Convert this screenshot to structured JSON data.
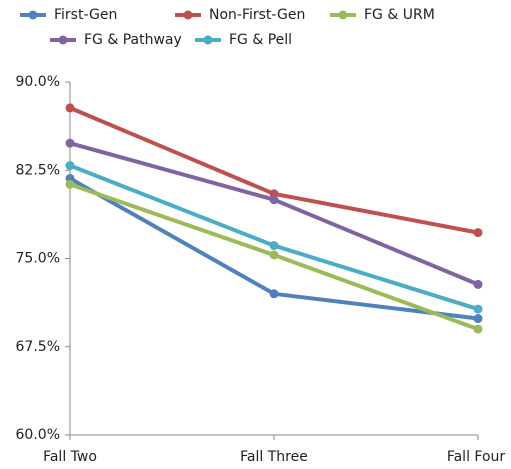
{
  "chart_data": {
    "type": "line",
    "categories": [
      "Fall Two",
      "Fall Three",
      "Fall Four"
    ],
    "series": [
      {
        "name": "First-Gen",
        "color": "#4f81bd",
        "values": [
          81.8,
          72.0,
          69.9
        ]
      },
      {
        "name": "Non-First-Gen",
        "color": "#c0504d",
        "values": [
          87.8,
          80.5,
          77.2
        ]
      },
      {
        "name": "FG & URM",
        "color": "#9bbb59",
        "values": [
          81.3,
          75.3,
          69.0
        ]
      },
      {
        "name": "FG & Pathway",
        "color": "#8064a2",
        "values": [
          84.8,
          80.0,
          72.8
        ]
      },
      {
        "name": "FG & Pell",
        "color": "#4bacc6",
        "values": [
          82.9,
          76.1,
          70.7
        ]
      }
    ],
    "ylim": [
      60,
      90
    ],
    "yticks": [
      {
        "value": 60,
        "label": "60.0%"
      },
      {
        "value": 67.5,
        "label": "67.5%"
      },
      {
        "value": 75,
        "label": "75.0%"
      },
      {
        "value": 82.5,
        "label": "82.5%"
      },
      {
        "value": 90,
        "label": "90.0%"
      }
    ],
    "grid": false,
    "legend": "top"
  }
}
